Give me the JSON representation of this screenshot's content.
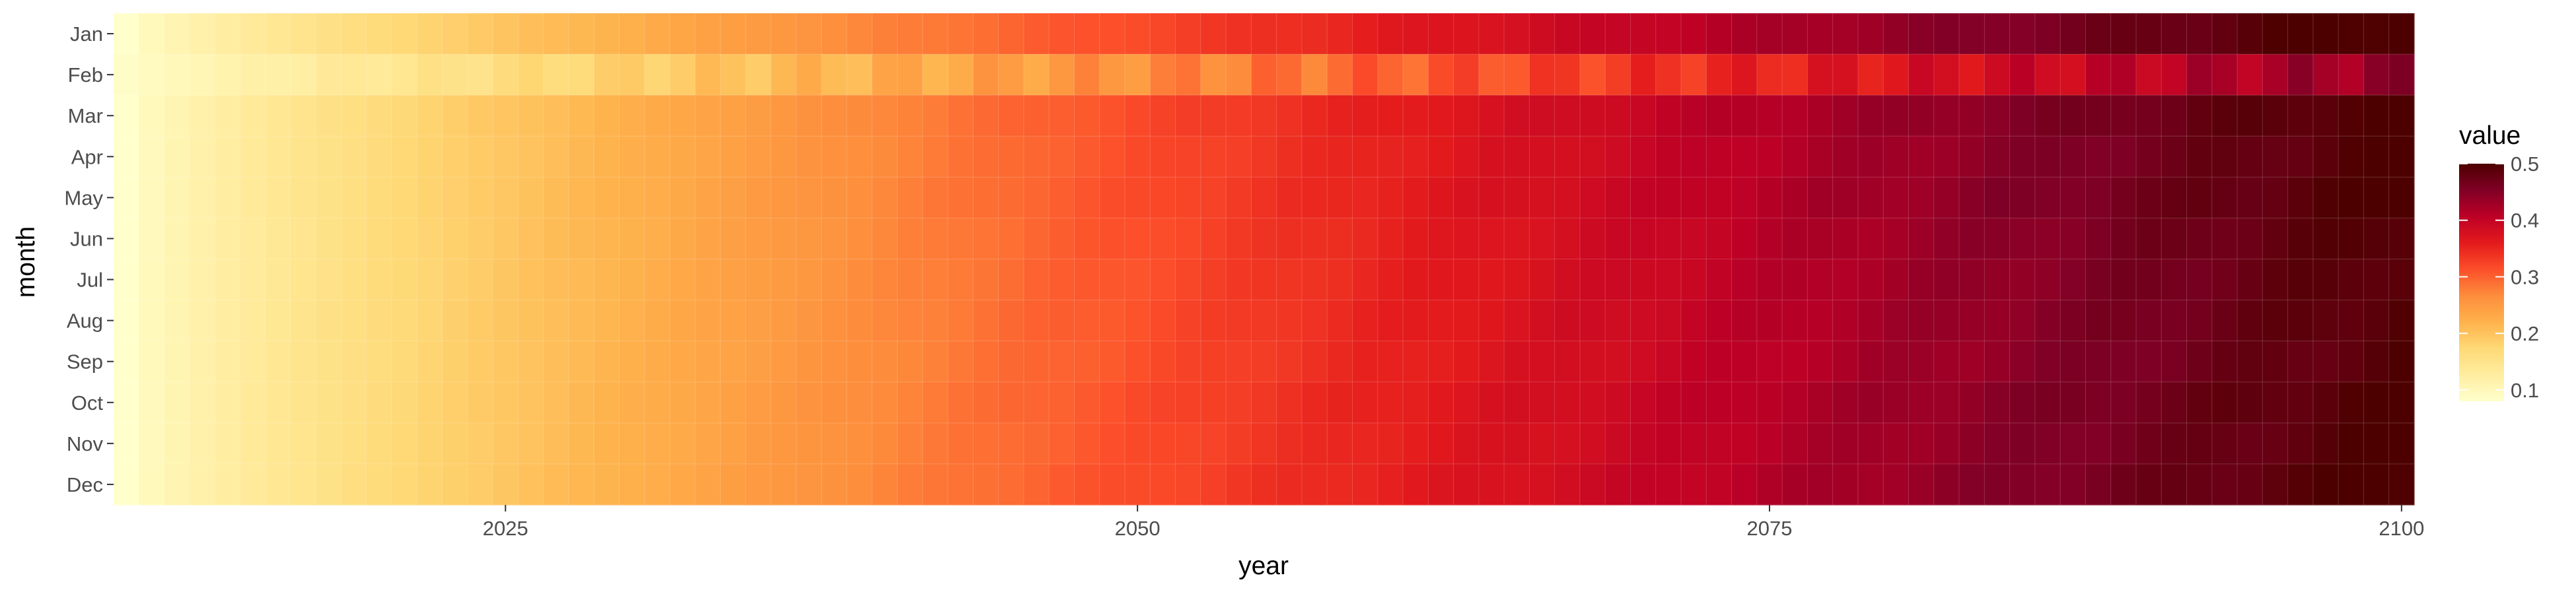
{
  "chart_data": {
    "type": "heatmap",
    "x_label": "year",
    "y_label": "month",
    "x_range": [
      2010,
      2100
    ],
    "x_ticks": [
      2025,
      2050,
      2075,
      2100
    ],
    "months": [
      "Jan",
      "Feb",
      "Mar",
      "Apr",
      "May",
      "Jun",
      "Jul",
      "Aug",
      "Sep",
      "Oct",
      "Nov",
      "Dec"
    ],
    "legend_title": "value",
    "legend_range": [
      0.08,
      0.5
    ],
    "legend_ticks": [
      0.1,
      0.2,
      0.3,
      0.4,
      0.5
    ],
    "color_scale": [
      "#ffffcc",
      "#ffeda0",
      "#fed976",
      "#feb24c",
      "#fd8d3c",
      "#fc4e2a",
      "#e31a1c",
      "#bd0026",
      "#800026",
      "#4d0000"
    ],
    "grid": true,
    "legend_position": "right",
    "value_model": {
      "description_free": true,
      "base_start": 0.08,
      "base_end": 0.5,
      "curve_exponent": 0.72,
      "feb_start": 0.085,
      "feb_end": 0.44,
      "feb_exponent": 0.85
    }
  }
}
